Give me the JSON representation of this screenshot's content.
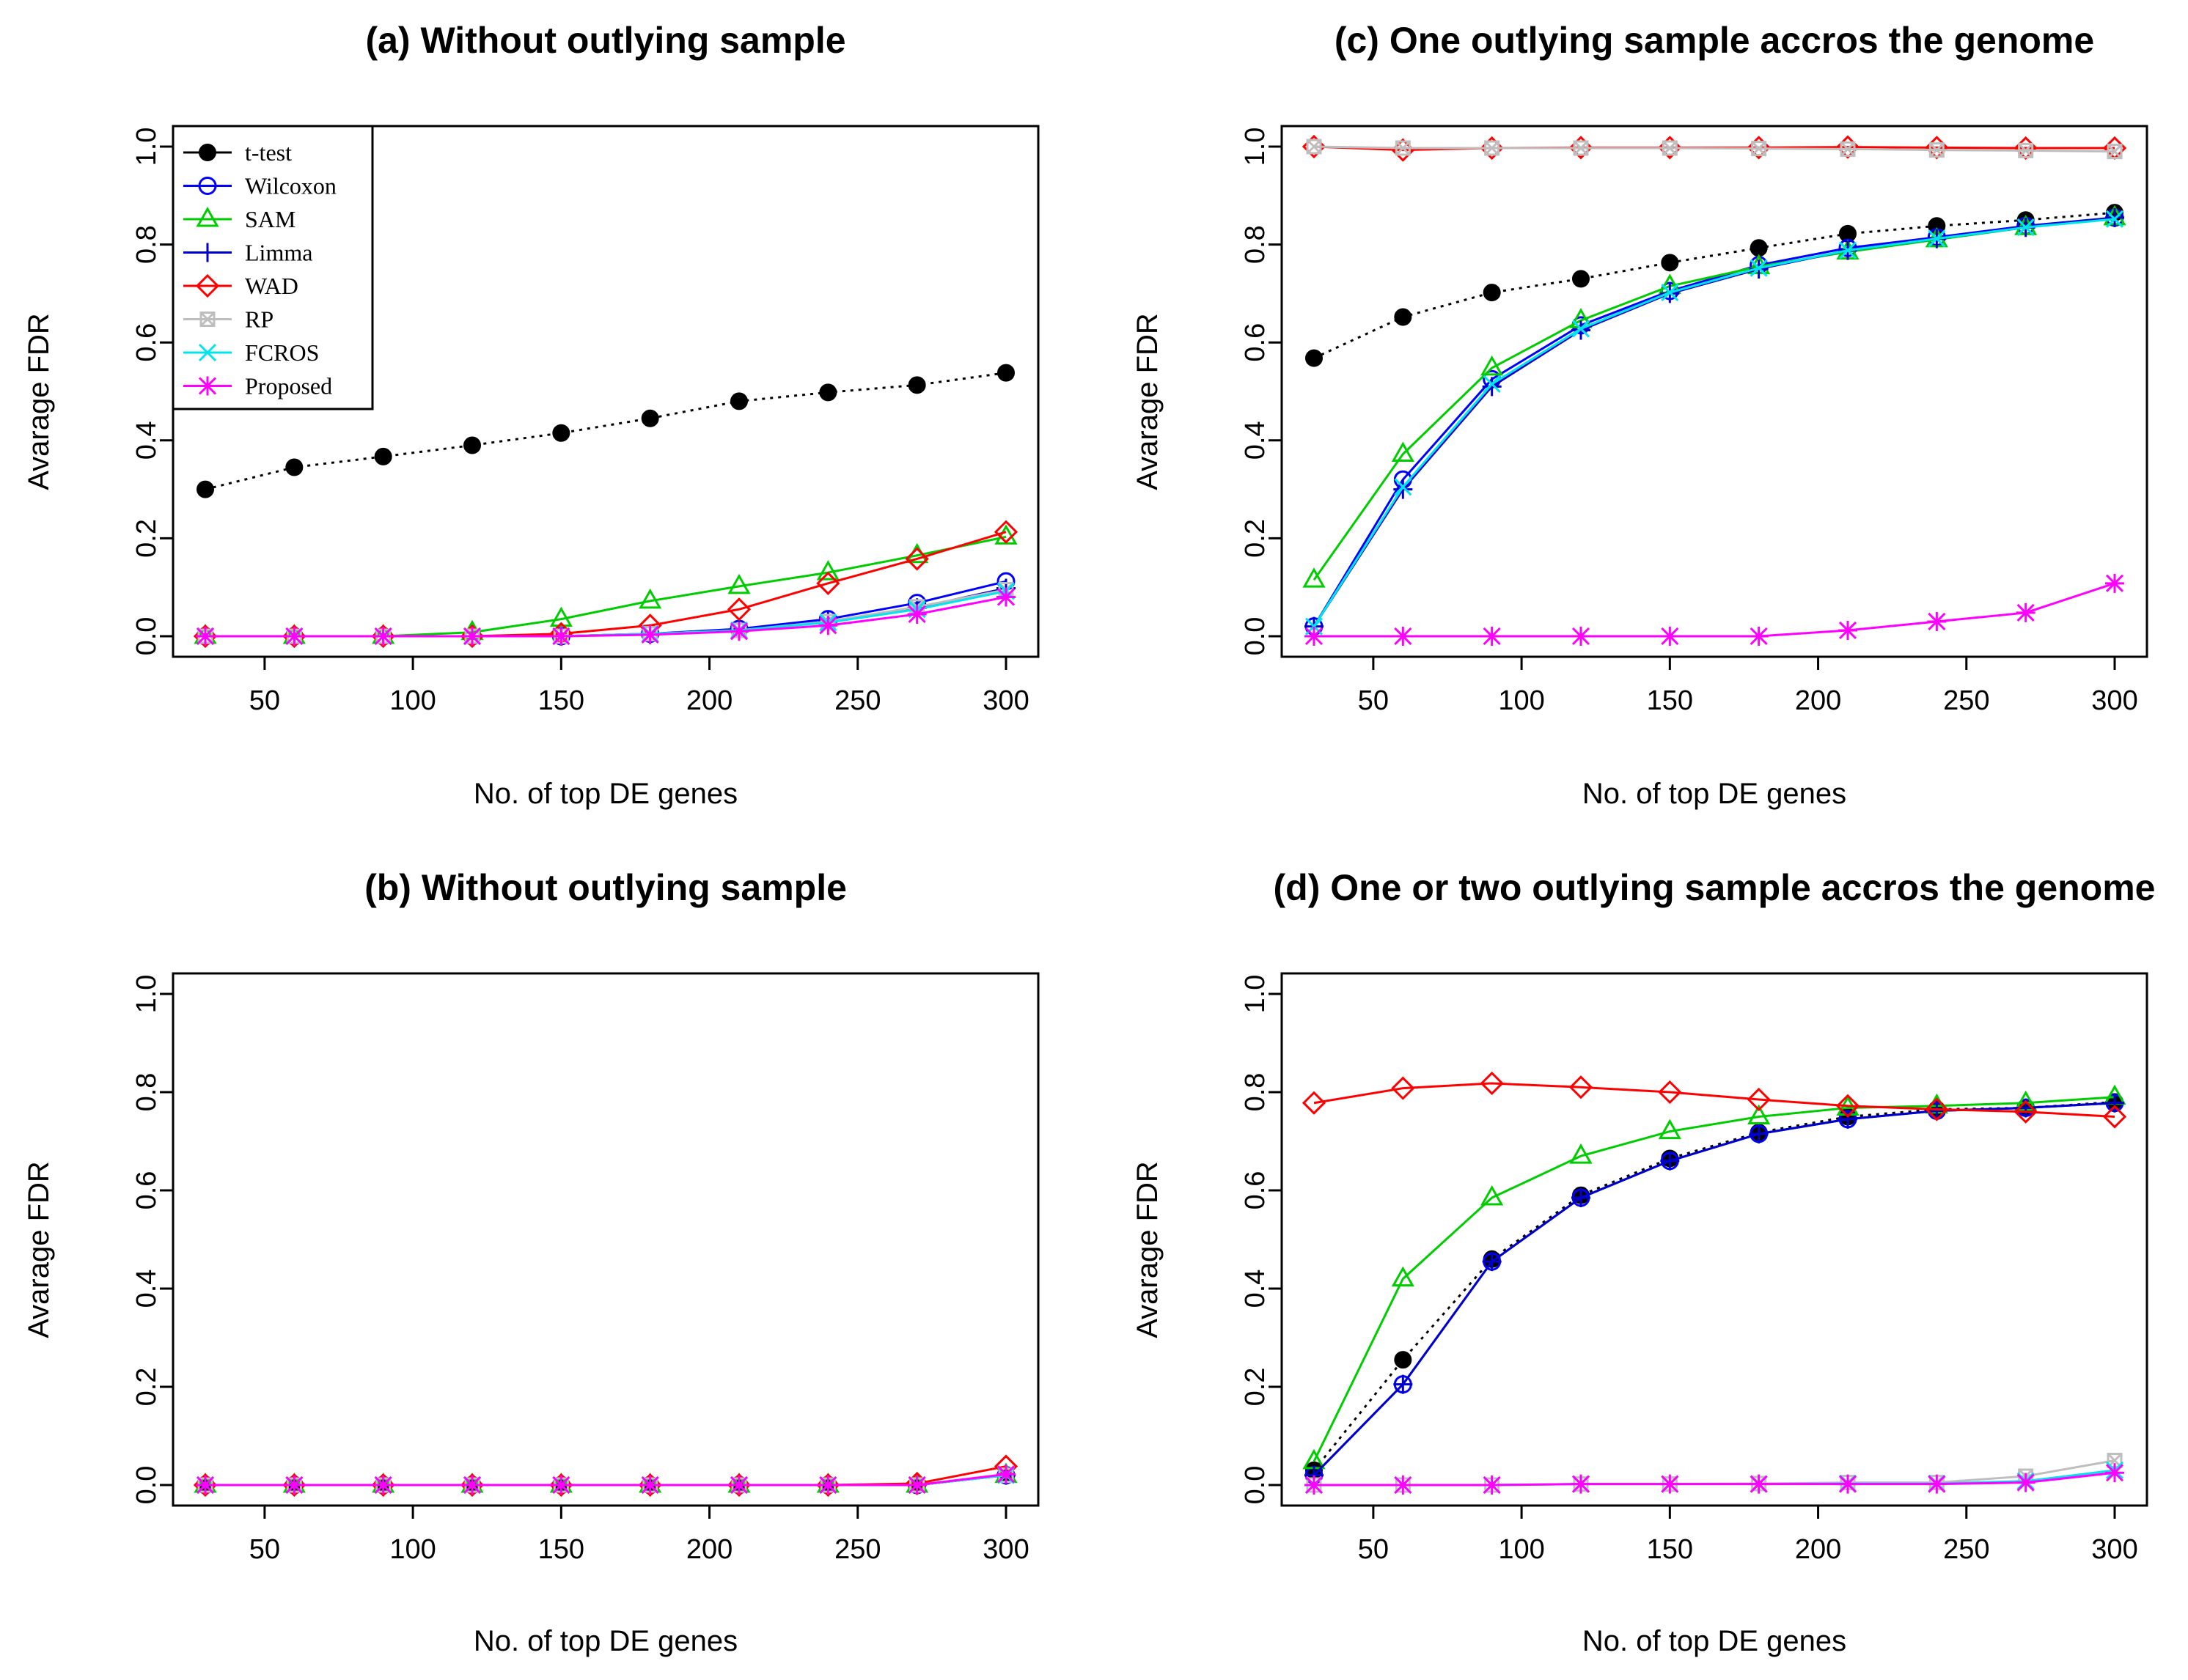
{
  "chart_data": [
    {
      "type": "line",
      "title": "(a) Without outlying sample",
      "xlabel": "No. of top DE genes",
      "ylabel": "Avarage FDR",
      "xlim": [
        30,
        300
      ],
      "ylim": [
        0,
        1
      ],
      "xticks": [
        "50",
        "100",
        "150",
        "200",
        "250",
        "300"
      ],
      "yticks": [
        "0.0",
        "0.2",
        "0.4",
        "0.6",
        "0.8",
        "1.0"
      ],
      "x": [
        30,
        60,
        90,
        120,
        150,
        180,
        210,
        240,
        270,
        300
      ],
      "legend": {
        "position": "top-left",
        "entries": [
          "t-test",
          "Wilcoxon",
          "SAM",
          "Limma",
          "WAD",
          "RP",
          "FCROS",
          "Proposed"
        ]
      },
      "series": [
        {
          "name": "t-test",
          "values": [
            0.3,
            0.345,
            0.367,
            0.39,
            0.415,
            0.445,
            0.48,
            0.498,
            0.513,
            0.538
          ]
        },
        {
          "name": "Wilcoxon",
          "values": [
            0,
            0,
            0,
            0,
            0,
            0.005,
            0.015,
            0.035,
            0.068,
            0.112
          ]
        },
        {
          "name": "SAM",
          "values": [
            0,
            0,
            0,
            0.008,
            0.035,
            0.072,
            0.102,
            0.13,
            0.165,
            0.203
          ]
        },
        {
          "name": "Limma",
          "values": [
            0,
            0,
            0,
            0,
            0,
            0.005,
            0.012,
            0.03,
            0.058,
            0.098
          ]
        },
        {
          "name": "WAD",
          "values": [
            0,
            0,
            0,
            0,
            0.005,
            0.022,
            0.055,
            0.108,
            0.158,
            0.213
          ]
        },
        {
          "name": "RP",
          "values": [
            0,
            0,
            0,
            0,
            0,
            0.005,
            0.012,
            0.03,
            0.06,
            0.095
          ]
        },
        {
          "name": "FCROS",
          "values": [
            0,
            0,
            0,
            0,
            0,
            0.005,
            0.012,
            0.028,
            0.055,
            0.092
          ]
        },
        {
          "name": "Proposed",
          "values": [
            0,
            0,
            0,
            0,
            0,
            0.003,
            0.01,
            0.022,
            0.045,
            0.08
          ]
        }
      ]
    },
    {
      "type": "line",
      "title": "(c) One outlying sample accros the genome",
      "xlabel": "No. of top DE genes",
      "ylabel": "Avarage FDR",
      "xlim": [
        30,
        300
      ],
      "ylim": [
        0,
        1
      ],
      "xticks": [
        "50",
        "100",
        "150",
        "200",
        "250",
        "300"
      ],
      "yticks": [
        "0.0",
        "0.2",
        "0.4",
        "0.6",
        "0.8",
        "1.0"
      ],
      "x": [
        30,
        60,
        90,
        120,
        150,
        180,
        210,
        240,
        270,
        300
      ],
      "series": [
        {
          "name": "t-test",
          "values": [
            0.568,
            0.652,
            0.702,
            0.73,
            0.763,
            0.793,
            0.822,
            0.838,
            0.85,
            0.865
          ]
        },
        {
          "name": "Wilcoxon",
          "values": [
            0.02,
            0.32,
            0.525,
            0.635,
            0.705,
            0.758,
            0.793,
            0.815,
            0.838,
            0.855
          ]
        },
        {
          "name": "SAM",
          "values": [
            0.115,
            0.372,
            0.548,
            0.645,
            0.715,
            0.755,
            0.785,
            0.81,
            0.835,
            0.855
          ]
        },
        {
          "name": "Limma",
          "values": [
            0.02,
            0.3,
            0.51,
            0.625,
            0.7,
            0.75,
            0.788,
            0.812,
            0.835,
            0.855
          ]
        },
        {
          "name": "WAD",
          "values": [
            1.0,
            0.993,
            0.997,
            0.998,
            0.998,
            0.998,
            0.999,
            0.998,
            0.997,
            0.997
          ]
        },
        {
          "name": "RP",
          "values": [
            1.0,
            0.997,
            0.997,
            0.997,
            0.997,
            0.996,
            0.995,
            0.993,
            0.992,
            0.99
          ]
        },
        {
          "name": "FCROS",
          "values": [
            0.02,
            0.305,
            0.515,
            0.628,
            0.702,
            0.752,
            0.788,
            0.812,
            0.835,
            0.852
          ]
        },
        {
          "name": "Proposed",
          "values": [
            0,
            0,
            0,
            0,
            0,
            0,
            0.012,
            0.03,
            0.048,
            0.108
          ]
        }
      ]
    },
    {
      "type": "line",
      "title": "(b) Without outlying sample",
      "xlabel": "No. of top DE genes",
      "ylabel": "Avarage FDR",
      "xlim": [
        30,
        300
      ],
      "ylim": [
        0,
        1
      ],
      "xticks": [
        "50",
        "100",
        "150",
        "200",
        "250",
        "300"
      ],
      "yticks": [
        "0.0",
        "0.2",
        "0.4",
        "0.6",
        "0.8",
        "1.0"
      ],
      "x": [
        30,
        60,
        90,
        120,
        150,
        180,
        210,
        240,
        270,
        300
      ],
      "series": [
        {
          "name": "t-test",
          "values": [
            0,
            0,
            0,
            0,
            0,
            0,
            0,
            0,
            0,
            0.02
          ]
        },
        {
          "name": "Wilcoxon",
          "values": [
            0,
            0,
            0,
            0,
            0,
            0,
            0,
            0,
            0,
            0.02
          ]
        },
        {
          "name": "SAM",
          "values": [
            0,
            0,
            0,
            0,
            0,
            0,
            0,
            0,
            0,
            0.02
          ]
        },
        {
          "name": "Limma",
          "values": [
            0,
            0,
            0,
            0,
            0,
            0,
            0,
            0,
            0,
            0.02
          ]
        },
        {
          "name": "WAD",
          "values": [
            0,
            0,
            0,
            0,
            0,
            0,
            0,
            0,
            0.003,
            0.038
          ]
        },
        {
          "name": "RP",
          "values": [
            0,
            0,
            0,
            0,
            0,
            0,
            0,
            0,
            0,
            0.02
          ]
        },
        {
          "name": "FCROS",
          "values": [
            0,
            0,
            0,
            0,
            0,
            0,
            0,
            0,
            0,
            0.02
          ]
        },
        {
          "name": "Proposed",
          "values": [
            0,
            0,
            0,
            0,
            0,
            0,
            0,
            0,
            0,
            0.022
          ]
        }
      ]
    },
    {
      "type": "line",
      "title": "(d) One or two outlying sample accros the genome",
      "xlabel": "No. of top DE genes",
      "ylabel": "Avarage FDR",
      "xlim": [
        30,
        300
      ],
      "ylim": [
        0,
        1
      ],
      "xticks": [
        "50",
        "100",
        "150",
        "200",
        "250",
        "300"
      ],
      "yticks": [
        "0.0",
        "0.2",
        "0.4",
        "0.6",
        "0.8",
        "1.0"
      ],
      "x": [
        30,
        60,
        90,
        120,
        150,
        180,
        210,
        240,
        270,
        300
      ],
      "series": [
        {
          "name": "t-test",
          "values": [
            0.03,
            0.255,
            0.46,
            0.59,
            0.665,
            0.718,
            0.75,
            0.765,
            0.768,
            0.78
          ]
        },
        {
          "name": "Wilcoxon",
          "values": [
            0.02,
            0.205,
            0.455,
            0.585,
            0.66,
            0.715,
            0.745,
            0.762,
            0.768,
            0.778
          ]
        },
        {
          "name": "SAM",
          "values": [
            0.048,
            0.42,
            0.585,
            0.67,
            0.72,
            0.75,
            0.768,
            0.772,
            0.778,
            0.79
          ]
        },
        {
          "name": "Limma",
          "values": [
            0.02,
            0.205,
            0.455,
            0.585,
            0.66,
            0.715,
            0.745,
            0.762,
            0.768,
            0.778
          ]
        },
        {
          "name": "WAD",
          "values": [
            0.778,
            0.808,
            0.818,
            0.81,
            0.8,
            0.785,
            0.772,
            0.765,
            0.76,
            0.75
          ]
        },
        {
          "name": "RP",
          "values": [
            0,
            0,
            0,
            0.002,
            0.002,
            0.003,
            0.005,
            0.005,
            0.018,
            0.05
          ]
        },
        {
          "name": "FCROS",
          "values": [
            0,
            0,
            0,
            0.002,
            0.002,
            0.002,
            0.003,
            0.003,
            0.008,
            0.03
          ]
        },
        {
          "name": "Proposed",
          "values": [
            0,
            0,
            0,
            0.002,
            0.002,
            0.002,
            0.002,
            0.002,
            0.005,
            0.025
          ]
        }
      ]
    }
  ],
  "styles": {
    "t-test": {
      "color": "#000000",
      "marker": "filled-circle",
      "dash": "dotted"
    },
    "Wilcoxon": {
      "color": "#0000ff",
      "marker": "open-circle",
      "dash": "solid"
    },
    "SAM": {
      "color": "#00cd00",
      "marker": "open-triangle",
      "dash": "solid"
    },
    "Limma": {
      "color": "#0000cd",
      "marker": "plus",
      "dash": "solid"
    },
    "WAD": {
      "color": "#ff0000",
      "marker": "open-diamond",
      "dash": "solid"
    },
    "RP": {
      "color": "#bebebe",
      "marker": "square-cross",
      "dash": "solid"
    },
    "FCROS": {
      "color": "#00e5ee",
      "marker": "x",
      "dash": "solid"
    },
    "Proposed": {
      "color": "#ff00ff",
      "marker": "asterisk",
      "dash": "solid"
    }
  }
}
